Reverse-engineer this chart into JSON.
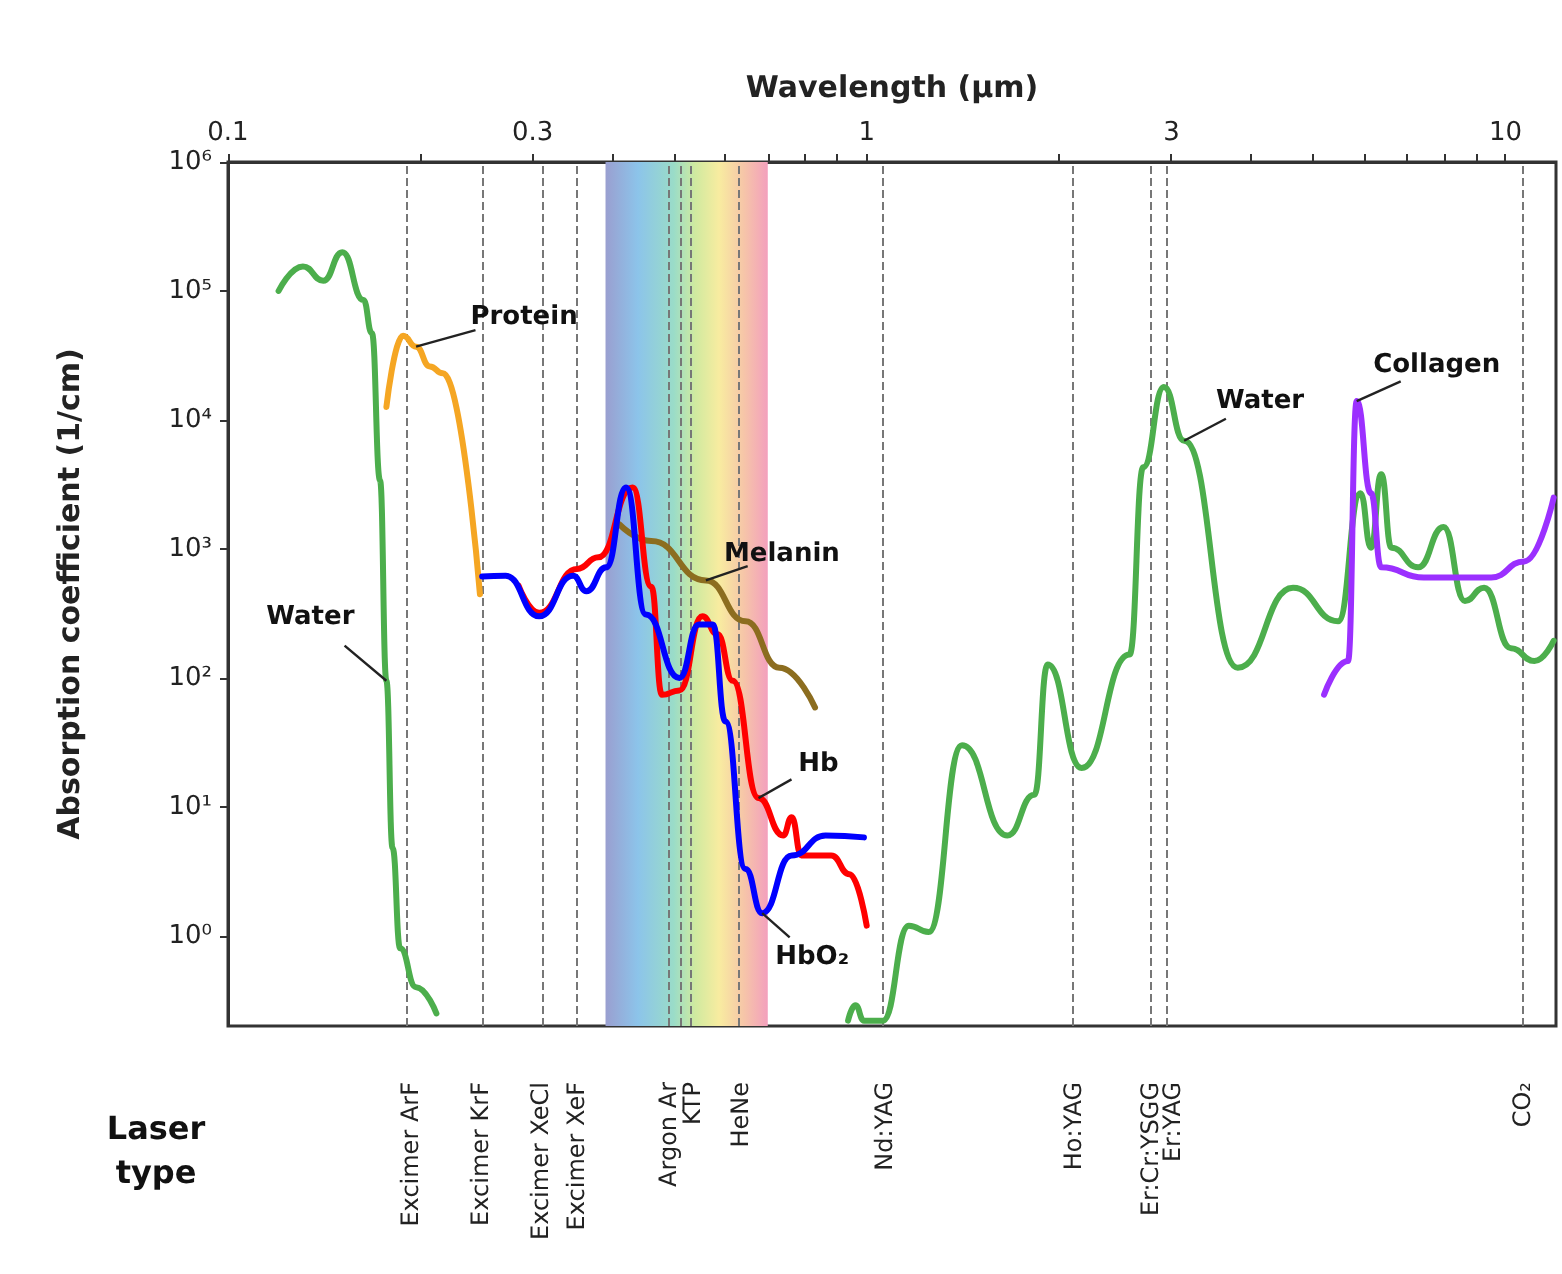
{
  "chart_data": {
    "type": "line",
    "xlabel": "Wavelength (µm)",
    "ylabel": "Absorption coefficient (1/cm)",
    "log": "xy",
    "xlim": [
      0.1,
      12
    ],
    "ylim": [
      0.2,
      1000000
    ],
    "xticks": [
      0.1,
      {
        "value": 0.2,
        "label": null
      },
      0.3,
      {
        "value": 0.4,
        "label": null
      },
      {
        "value": 0.5,
        "label": null
      },
      {
        "value": 0.6,
        "label": null
      },
      {
        "value": 0.7,
        "label": null
      },
      {
        "value": 0.8,
        "label": null
      },
      {
        "value": 0.9,
        "label": null
      },
      1,
      {
        "value": 2,
        "label": null
      },
      3,
      {
        "value": 4,
        "label": null
      },
      {
        "value": 5,
        "label": null
      },
      {
        "value": 6,
        "label": null
      },
      {
        "value": 7,
        "label": null
      },
      {
        "value": 8,
        "label": null
      },
      {
        "value": 9,
        "label": null
      },
      10
    ],
    "yticks": [
      {
        "value": 1,
        "label": "10⁰"
      },
      {
        "value": 10,
        "label": "10¹"
      },
      {
        "value": 100,
        "label": "10²"
      },
      {
        "value": 1000,
        "label": "10³"
      },
      {
        "value": 10000,
        "label": "10⁴"
      },
      {
        "value": 100000,
        "label": "10⁵"
      },
      {
        "value": 1000000,
        "label": "10⁶"
      }
    ],
    "grid": false,
    "legend": false,
    "marker": "none",
    "line_style": "solid",
    "series": [
      {
        "name": "Water",
        "color": "#4cae4c",
        "x": [
          0.12,
          0.131,
          0.141,
          0.151,
          0.163,
          0.168,
          0.173,
          0.177,
          0.181,
          0.186,
          0.197,
          0.212
        ],
        "values": [
          100000,
          155000,
          120000,
          200000,
          85000,
          47000,
          3400,
          95,
          4.8,
          0.8,
          0.4,
          0.25
        ]
      },
      {
        "name": "Protein",
        "color": "#f5a623",
        "x": [
          0.177,
          0.188,
          0.197,
          0.207,
          0.217,
          0.248
        ],
        "values": [
          12600,
          45000,
          37000,
          26000,
          23000,
          446
        ]
      },
      {
        "name": "Melanin",
        "color": "#8c6d1f",
        "x": [
          0.41,
          0.46,
          0.56,
          0.646,
          0.73,
          0.83
        ],
        "values": [
          1550,
          1150,
          570,
          275,
          120,
          59
        ]
      },
      {
        "name": "Hb",
        "color": "#ff0000",
        "x": [
          0.285,
          0.307,
          0.352,
          0.38,
          0.43,
          0.46,
          0.478,
          0.509,
          0.553,
          0.584,
          0.617,
          0.677,
          0.74,
          0.763,
          0.79,
          0.88,
          0.94,
          1.0
        ],
        "values": [
          520,
          320,
          700,
          860,
          3000,
          510,
          74,
          80,
          300,
          218,
          95,
          11.7,
          6,
          8.3,
          4.2,
          4.2,
          3,
          1.2
        ]
      },
      {
        "name": "HbO₂",
        "color": "#0000ff",
        "x": [
          0.25,
          0.272,
          0.307,
          0.347,
          0.364,
          0.391,
          0.42,
          0.451,
          0.509,
          0.546,
          0.574,
          0.601,
          0.646,
          0.686,
          0.763,
          0.862,
          0.99
        ],
        "values": [
          610,
          620,
          300,
          620,
          470,
          720,
          3000,
          310,
          100,
          260,
          260,
          46,
          3.3,
          1.5,
          4.2,
          6,
          5.8
        ]
      },
      {
        "name": "Water",
        "color": "#4cae4c",
        "x": [
          0.935,
          0.96,
          0.99,
          1.06,
          1.164,
          1.25,
          1.41,
          1.66,
          1.83,
          1.92,
          2.17,
          2.58,
          2.71,
          2.92,
          3.14,
          3.81,
          4.65,
          5.47,
          5.93,
          6.16,
          6.39,
          6.63,
          7.3,
          8.0,
          8.64,
          9.26,
          10.2,
          11.1,
          11.9
        ],
        "values": [
          0.22,
          0.29,
          0.22,
          0.22,
          1.2,
          1.07,
          30,
          6,
          12.4,
          127,
          20,
          152,
          4300,
          18000,
          6900,
          120,
          500,
          275,
          2700,
          1020,
          3800,
          1020,
          720,
          1480,
          395,
          500,
          170,
          135,
          194
        ]
      },
      {
        "name": "Collagen",
        "color": "#9b30ff",
        "x": [
          5.2,
          5.67,
          5.85,
          6.16,
          6.39,
          7.45,
          9.5,
          10.7,
          11.9
        ],
        "values": [
          74,
          135,
          14000,
          2700,
          720,
          600,
          600,
          800,
          2500
        ]
      }
    ],
    "ref_lines": [
      {
        "axis": "x",
        "value": 0.193,
        "label": "Excimer ArF"
      },
      {
        "axis": "x",
        "value": 0.248,
        "label": "Excimer KrF"
      },
      {
        "axis": "x",
        "value": 0.308,
        "label": "Excimer XeCl"
      },
      {
        "axis": "x",
        "value": 0.351,
        "label": "Excimer XeF"
      },
      {
        "axis": "x",
        "value": 0.488,
        "label": "Argon Ar"
      },
      {
        "axis": "x",
        "value": 0.514,
        "label": null
      },
      {
        "axis": "x",
        "value": 0.532,
        "label": "KTP"
      },
      {
        "axis": "x",
        "value": 0.633,
        "label": "HeNe"
      },
      {
        "axis": "x",
        "value": 1.064,
        "label": "Nd:YAG"
      },
      {
        "axis": "x",
        "value": 2.1,
        "label": "Ho:YAG"
      },
      {
        "axis": "x",
        "value": 2.78,
        "label": "Er:Cr:YSGG"
      },
      {
        "axis": "x",
        "value": 2.94,
        "label": "Er:YAG"
      },
      {
        "axis": "x",
        "value": 10.6,
        "label": "CO₂"
      }
    ],
    "bands": [
      {
        "axis": "x",
        "from": 0.39,
        "to": 0.7
      }
    ],
    "annotations": [
      "Laser type"
    ]
  }
}
